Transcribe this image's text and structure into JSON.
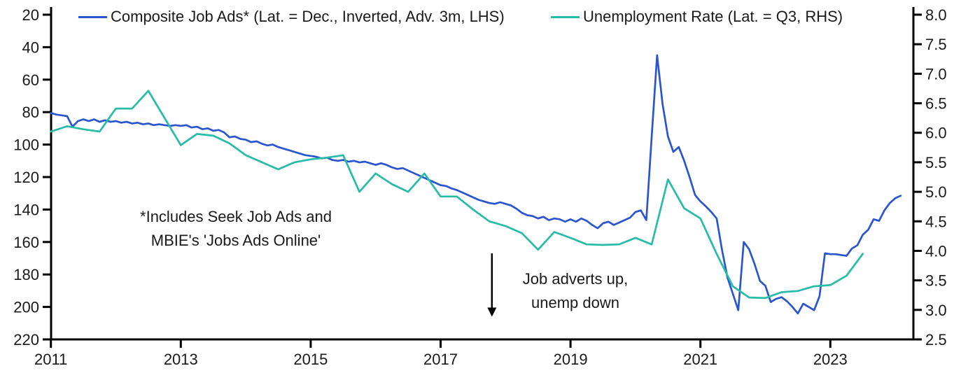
{
  "legend": {
    "composite_label": "Composite Job Ads* (Lat. = Dec., Inverted, Adv. 3m, LHS)",
    "unemployment_label": "Unemployment Rate (Lat. = Q3, RHS)"
  },
  "annotations": {
    "footnote_line1": "*Includes Seek Job Ads and",
    "footnote_line2": "MBIE's 'Jobs Ads Online'",
    "arrow_line1": "Job adverts up,",
    "arrow_line2": "unemp down"
  },
  "colors": {
    "composite_blue": "#2a55cf",
    "unemployment_teal": "#26bca7",
    "axis_black": "#000000",
    "text_dark": "#1a1a1a"
  },
  "chart_data": {
    "type": "line",
    "title": "",
    "xlabel": "",
    "ylabel_left": "",
    "ylabel_right": "",
    "grid": false,
    "legend_position": "top",
    "x_axis": {
      "min": 2011.0,
      "max": 2024.35,
      "tick_years": [
        2011,
        2013,
        2015,
        2017,
        2019,
        2021,
        2023
      ]
    },
    "left_axis": {
      "min": 20,
      "max": 220,
      "inverted": true,
      "ticks": [
        20,
        40,
        60,
        80,
        100,
        120,
        140,
        160,
        180,
        200,
        220
      ]
    },
    "right_axis": {
      "min": 2.5,
      "max": 8.0,
      "ticks": [
        8.0,
        7.5,
        7.0,
        6.5,
        6.0,
        5.5,
        5.0,
        4.5,
        4.0,
        3.5,
        3.0,
        2.5
      ]
    },
    "series": [
      {
        "name": "Composite Job Ads* (Lat. = Dec., Inverted, Adv. 3m, LHS)",
        "axis": "left",
        "frequency": "monthly",
        "start_year": 2011.0,
        "step_years": 0.0833333,
        "values": [
          80.5,
          81.5,
          82,
          82.5,
          89,
          85.5,
          84.5,
          85.5,
          84.5,
          86,
          85,
          86,
          85.5,
          86.5,
          86,
          87,
          86.5,
          87.5,
          87,
          88,
          87.5,
          88,
          88.5,
          88,
          88.5,
          88,
          89.5,
          89,
          90.5,
          90,
          91.5,
          91,
          92.5,
          95.5,
          95,
          96.5,
          97,
          98.5,
          98,
          99.5,
          100.5,
          100,
          101.5,
          102.5,
          103.5,
          104.5,
          105.5,
          106.5,
          107,
          107.5,
          108.5,
          108,
          109.5,
          110,
          109.5,
          110.5,
          110,
          111,
          110.5,
          111.5,
          112.5,
          111.5,
          112.5,
          114,
          115,
          114.5,
          116,
          117.5,
          119,
          120.5,
          122,
          123.5,
          125,
          125.5,
          127,
          128,
          129.5,
          131,
          132.5,
          134,
          135,
          136,
          136.5,
          135.5,
          136.5,
          137.5,
          139.5,
          142,
          143.5,
          144,
          145.5,
          144.5,
          146.5,
          145.5,
          146,
          147.5,
          146,
          147.5,
          145.5,
          147,
          149.5,
          151.5,
          148.5,
          147.5,
          149.5,
          148,
          146.5,
          145,
          141.5,
          140.5,
          146.5,
          95,
          45,
          75,
          95,
          104.5,
          101.5,
          110,
          120,
          131,
          135,
          138,
          141.5,
          145.5,
          165,
          182,
          192,
          202,
          160,
          164.5,
          173.5,
          184,
          187,
          197,
          195,
          194,
          196.5,
          200,
          204,
          198,
          200,
          202,
          193.5,
          167,
          167.5,
          167.5,
          168,
          168.5,
          164,
          162,
          155.5,
          152.5,
          146,
          147,
          140.5,
          136,
          133,
          131.5
        ]
      },
      {
        "name": "Unemployment Rate (Lat. = Q3, RHS)",
        "axis": "right",
        "frequency": "quarterly",
        "start_year": 2011.0,
        "step_years": 0.25,
        "values": [
          6.02,
          6.11,
          6.06,
          6.02,
          6.41,
          6.41,
          6.71,
          6.25,
          5.79,
          5.98,
          5.95,
          5.82,
          5.62,
          5.5,
          5.38,
          5.5,
          5.55,
          5.58,
          5.62,
          5.0,
          5.31,
          5.13,
          5.0,
          5.31,
          4.92,
          4.92,
          4.7,
          4.5,
          4.42,
          4.3,
          4.02,
          4.32,
          4.22,
          4.11,
          4.1,
          4.11,
          4.22,
          4.11,
          5.21,
          4.72,
          4.55,
          3.95,
          3.4,
          3.21,
          3.2,
          3.3,
          3.32,
          3.4,
          3.42,
          3.58,
          3.95
        ]
      }
    ],
    "annotation_arrow": {
      "x_year": 2017.79,
      "y_from_left_value": 167,
      "y_to_left_value": 206,
      "direction": "down"
    }
  }
}
